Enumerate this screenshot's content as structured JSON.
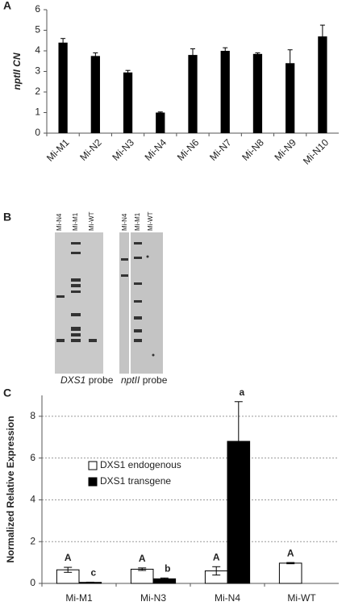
{
  "chart_data": [
    {
      "type": "bar",
      "panel_label": "A",
      "y_label": "nptII CN",
      "categories": [
        "Mi-M1",
        "Mi-N2",
        "Mi-N3",
        "Mi-N4",
        "Mi-N6",
        "Mi-N7",
        "Mi-N8",
        "Mi-N9",
        "Mi-N10"
      ],
      "values": [
        4.4,
        3.75,
        2.95,
        1.0,
        3.8,
        4.0,
        3.85,
        3.4,
        4.7
      ],
      "errors": [
        0.2,
        0.15,
        0.1,
        0.03,
        0.3,
        0.15,
        0.05,
        0.65,
        0.55
      ],
      "color": "#000000",
      "ylim": [
        0,
        6
      ],
      "yticks": [
        0,
        1,
        2,
        3,
        4,
        5,
        6
      ],
      "grid": false
    },
    {
      "type": "grouped_bar",
      "panel_label": "C",
      "y_label": "Normalized Relative Expression",
      "categories": [
        "Mi-M1",
        "Mi-N3",
        "Mi-N4",
        "Mi-WT"
      ],
      "series": [
        {
          "name": "DXS1 endogenous",
          "color": "#ffffff",
          "values": [
            0.65,
            0.68,
            0.6,
            0.97
          ],
          "errors": [
            0.12,
            0.06,
            0.2,
            0.03
          ],
          "labels": [
            "A",
            "A",
            "A",
            "A"
          ]
        },
        {
          "name": "DXS1 transgene",
          "color": "#000000",
          "values": [
            0.05,
            0.22,
            6.8,
            null
          ],
          "errors": [
            0.01,
            0.04,
            1.9,
            null
          ],
          "labels": [
            "c",
            "b",
            "a",
            null
          ]
        }
      ],
      "ylim": [
        0,
        9
      ],
      "yticks": [
        0,
        2,
        4,
        6,
        8
      ],
      "grid": true
    }
  ],
  "blot": {
    "panel_label": "B",
    "lanes_left": [
      "Mi-N4",
      "Mi-M1",
      "Mi-WT"
    ],
    "lanes_right": [
      "Mi-N4",
      "Mi-M1",
      "Mi-WT"
    ],
    "probe_left": {
      "gene": "DXS1",
      "text": "probe"
    },
    "probe_right": {
      "gene": "nptII",
      "text": "probe"
    }
  }
}
